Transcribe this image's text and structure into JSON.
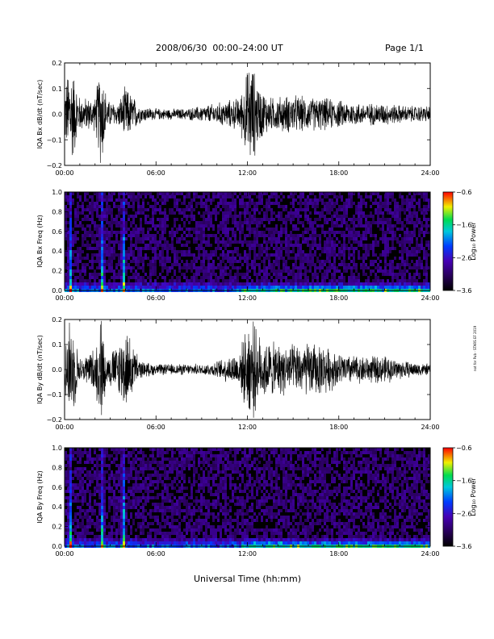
{
  "header": {
    "title": "2008/06/30  00:00–24:00 UT",
    "page": "Page 1/1"
  },
  "side_note": "not for Pub - STARS EF 2019",
  "chart_data": [
    {
      "type": "line",
      "ylabel": "IQA Bx dB/dt (nT/sec)",
      "ylim": [
        -0.2,
        0.2
      ],
      "yticks": [
        "0.2",
        "0.1",
        "0.0",
        "−0.1",
        "−0.2"
      ],
      "yvals": [
        0.2,
        0.1,
        0.0,
        -0.1,
        -0.2
      ],
      "xticks": [
        "00:00",
        "06:00",
        "12:00",
        "18:00",
        "24:00"
      ],
      "xlim_hours": [
        0,
        24
      ],
      "envelope": {
        "hours": [
          0,
          0.4,
          1,
          2,
          2.4,
          2.8,
          3.5,
          4,
          5,
          6,
          8,
          9,
          10,
          11.5,
          12.2,
          12.8,
          13.5,
          15,
          16,
          17,
          18,
          19.5,
          21,
          22.5,
          24
        ],
        "amplitude": [
          0.1,
          0.2,
          0.06,
          0.06,
          0.2,
          0.05,
          0.04,
          0.1,
          0.03,
          0.02,
          0.02,
          0.03,
          0.04,
          0.06,
          0.2,
          0.1,
          0.06,
          0.07,
          0.06,
          0.06,
          0.05,
          0.04,
          0.04,
          0.03,
          0.03
        ]
      }
    },
    {
      "type": "heatmap",
      "ylabel": "IQA Bx Freq (Hz)",
      "ylim": [
        0.0,
        1.0
      ],
      "yticks": [
        "1.0",
        "0.8",
        "0.6",
        "0.4",
        "0.2",
        "0.0"
      ],
      "yvals": [
        1.0,
        0.8,
        0.6,
        0.4,
        0.2,
        0.0
      ],
      "xticks": [
        "00:00",
        "06:00",
        "12:00",
        "18:00",
        "24:00"
      ],
      "colorbar": {
        "label": "Log₁₀ Power",
        "ticks": [
          "−0.6",
          "−1.6",
          "−2.6",
          "−3.6"
        ],
        "range": [
          -3.6,
          -0.6
        ]
      },
      "bursts_hours": [
        0.3,
        2.4,
        3.8
      ],
      "band_hours": [
        11.5,
        24
      ]
    },
    {
      "type": "line",
      "ylabel": "IQA By dB/dt (nT/sec)",
      "ylim": [
        -0.2,
        0.2
      ],
      "yticks": [
        "0.2",
        "0.1",
        "0.0",
        "−0.1",
        "−0.2"
      ],
      "yvals": [
        0.2,
        0.1,
        0.0,
        -0.1,
        -0.2
      ],
      "xticks": [
        "00:00",
        "06:00",
        "12:00",
        "18:00",
        "24:00"
      ],
      "xlim_hours": [
        0,
        24
      ],
      "envelope": {
        "hours": [
          0,
          0.4,
          1,
          2,
          2.4,
          2.8,
          3.5,
          4,
          5,
          6,
          8,
          9,
          10,
          11.5,
          12.2,
          12.8,
          13.5,
          15,
          16,
          17,
          18,
          19.5,
          21,
          22.5,
          24
        ],
        "amplitude": [
          0.1,
          0.2,
          0.04,
          0.08,
          0.2,
          0.05,
          0.1,
          0.15,
          0.03,
          0.02,
          0.02,
          0.02,
          0.03,
          0.07,
          0.2,
          0.12,
          0.1,
          0.09,
          0.1,
          0.09,
          0.06,
          0.05,
          0.05,
          0.03,
          0.02
        ]
      }
    },
    {
      "type": "heatmap",
      "ylabel": "IQA By Freq (Hz)",
      "ylim": [
        0.0,
        1.0
      ],
      "yticks": [
        "1.0",
        "0.8",
        "0.6",
        "0.4",
        "0.2",
        "0.0"
      ],
      "yvals": [
        1.0,
        0.8,
        0.6,
        0.4,
        0.2,
        0.0
      ],
      "xticks": [
        "00:00",
        "06:00",
        "12:00",
        "18:00",
        "24:00"
      ],
      "colorbar": {
        "label": "Log₁₀ Power",
        "ticks": [
          "−0.6",
          "−1.6",
          "−2.6",
          "−3.6"
        ],
        "range": [
          -3.6,
          -0.6
        ]
      },
      "bursts_hours": [
        0.3,
        2.4,
        3.8
      ],
      "band_hours": [
        11.5,
        24
      ]
    }
  ],
  "xlabel": "Universal Time (hh:mm)"
}
